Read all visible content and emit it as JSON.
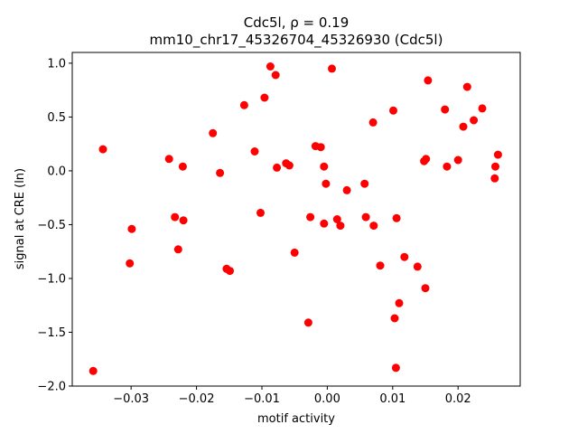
{
  "chart_data": {
    "type": "scatter",
    "title_line1": "Cdc5l, ρ = 0.19",
    "title_line2": "mm10_chr17_45326704_45326930 (Cdc5l)",
    "xlabel": "motif activity",
    "ylabel": "signal at CRE (ln)",
    "xlim": [
      -0.039,
      0.0295
    ],
    "ylim": [
      -2.0,
      1.1
    ],
    "xticks": [
      -0.03,
      -0.02,
      -0.01,
      0.0,
      0.01,
      0.02
    ],
    "xtick_labels": [
      "−0.03",
      "−0.02",
      "−0.01",
      "0.00",
      "0.01",
      "0.02"
    ],
    "yticks": [
      -2.0,
      -1.5,
      -1.0,
      -0.5,
      0.0,
      0.5,
      1.0
    ],
    "ytick_labels": [
      "−2.0",
      "−1.5",
      "−1.0",
      "−0.5",
      "0.0",
      "0.5",
      "1.0"
    ],
    "grid": false,
    "color": "#ff0000",
    "points": [
      [
        -0.0358,
        -1.86
      ],
      [
        -0.0343,
        0.2
      ],
      [
        -0.0302,
        -0.86
      ],
      [
        -0.0299,
        -0.54
      ],
      [
        -0.0242,
        0.11
      ],
      [
        -0.0233,
        -0.43
      ],
      [
        -0.0228,
        -0.73
      ],
      [
        -0.0221,
        0.04
      ],
      [
        -0.022,
        -0.46
      ],
      [
        -0.0175,
        0.35
      ],
      [
        -0.0164,
        -0.02
      ],
      [
        -0.0154,
        -0.91
      ],
      [
        -0.0149,
        -0.93
      ],
      [
        -0.0127,
        0.61
      ],
      [
        -0.0111,
        0.18
      ],
      [
        -0.0102,
        -0.39
      ],
      [
        -0.0096,
        0.68
      ],
      [
        -0.0087,
        0.97
      ],
      [
        -0.0079,
        0.89
      ],
      [
        -0.0077,
        0.03
      ],
      [
        -0.0063,
        0.07
      ],
      [
        -0.0058,
        0.05
      ],
      [
        -0.005,
        -0.76
      ],
      [
        -0.0029,
        -1.41
      ],
      [
        -0.0026,
        -0.43
      ],
      [
        -0.0018,
        0.23
      ],
      [
        -0.001,
        0.22
      ],
      [
        -0.0005,
        0.04
      ],
      [
        -0.0005,
        -0.49
      ],
      [
        -0.0002,
        -0.12
      ],
      [
        0.0007,
        0.95
      ],
      [
        0.0015,
        -0.45
      ],
      [
        0.002,
        -0.51
      ],
      [
        0.003,
        -0.18
      ],
      [
        0.0057,
        -0.12
      ],
      [
        0.0059,
        -0.43
      ],
      [
        0.007,
        0.45
      ],
      [
        0.0071,
        -0.51
      ],
      [
        0.0081,
        -0.88
      ],
      [
        0.0101,
        0.56
      ],
      [
        0.0103,
        -1.37
      ],
      [
        0.0105,
        -1.83
      ],
      [
        0.0106,
        -0.44
      ],
      [
        0.011,
        -1.23
      ],
      [
        0.0118,
        -0.8
      ],
      [
        0.0138,
        -0.89
      ],
      [
        0.0148,
        0.09
      ],
      [
        0.015,
        -1.09
      ],
      [
        0.0151,
        0.11
      ],
      [
        0.0154,
        0.84
      ],
      [
        0.018,
        0.57
      ],
      [
        0.0183,
        0.04
      ],
      [
        0.02,
        0.1
      ],
      [
        0.0208,
        0.41
      ],
      [
        0.0214,
        0.78
      ],
      [
        0.0224,
        0.47
      ],
      [
        0.0237,
        0.58
      ],
      [
        0.0256,
        -0.07
      ],
      [
        0.0257,
        0.04
      ],
      [
        0.0261,
        0.15
      ]
    ]
  }
}
